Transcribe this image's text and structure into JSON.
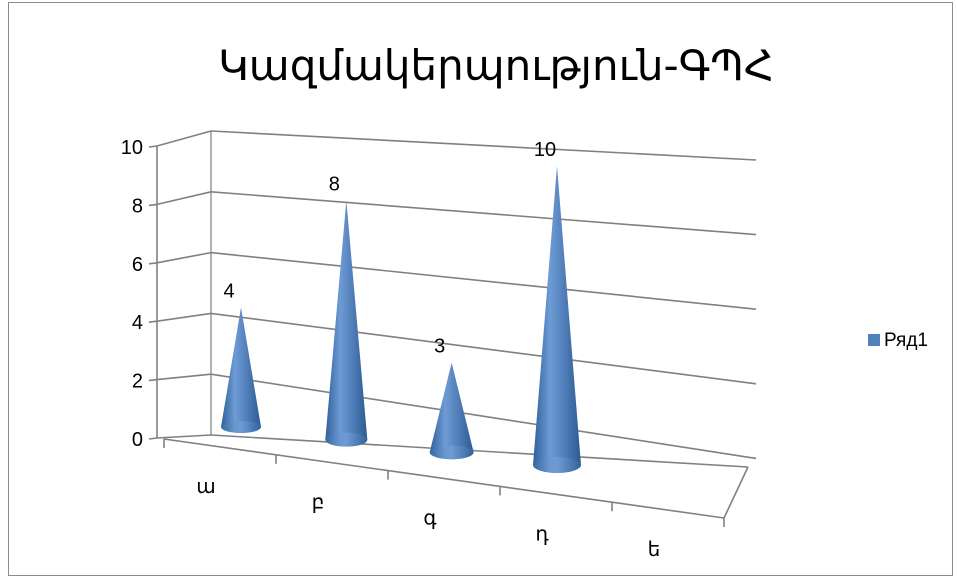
{
  "chart_data": {
    "type": "bar",
    "style": "3d-cone",
    "title": "Կազմակերպություն-ԳՊՀ",
    "categories": [
      "ա",
      "բ",
      "գ",
      "դ",
      "ե"
    ],
    "series": [
      {
        "name": "Ряд1",
        "values": [
          4,
          8,
          3,
          10,
          null
        ],
        "color": "#4f81bd"
      }
    ],
    "y_ticks": [
      "0",
      "2",
      "4",
      "6",
      "8",
      "10"
    ],
    "ylim": [
      0,
      10
    ],
    "grid": true,
    "legend_position": "right",
    "data_labels": [
      "4",
      "8",
      "3",
      "10"
    ]
  }
}
